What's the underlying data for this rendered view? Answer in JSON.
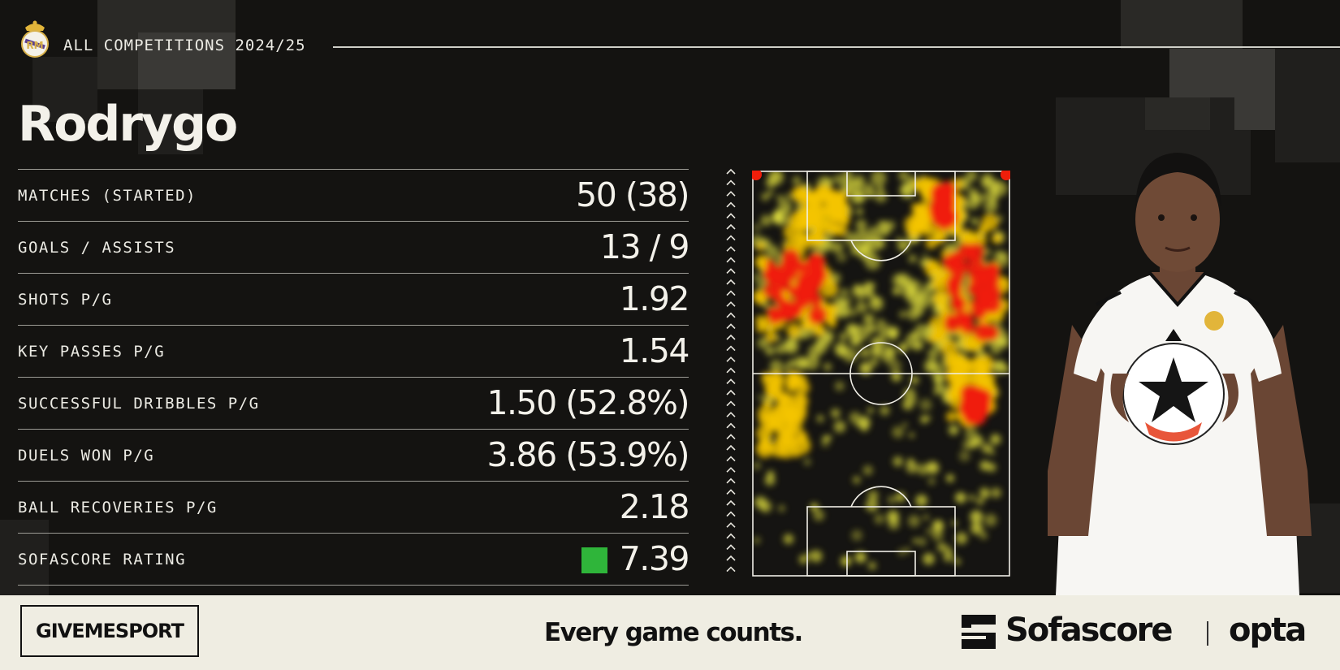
{
  "header": {
    "competition": "ALL COMPETITIONS 2024/25"
  },
  "player": {
    "name": "Rodrygo"
  },
  "stats": [
    {
      "label": "MATCHES (STARTED)",
      "value": "50 (38)"
    },
    {
      "label": "GOALS / ASSISTS",
      "value": "13 / 9"
    },
    {
      "label": "SHOTS P/G",
      "value": "1.92"
    },
    {
      "label": "KEY PASSES P/G",
      "value": "1.54"
    },
    {
      "label": "SUCCESSFUL DRIBBLES P/G",
      "value": "1.50 (52.8%)"
    },
    {
      "label": "DUELS WON P/G",
      "value": "3.86 (53.9%)"
    },
    {
      "label": "BALL RECOVERIES P/G",
      "value": "2.18"
    },
    {
      "label": "SOFASCORE RATING",
      "value": "7.39"
    }
  ],
  "rating_color": "#2fb53a",
  "heatmap": {
    "attack_direction": "up",
    "colors": {
      "low": "#e8e640",
      "mid": "#f4c400",
      "high": "#f01e0a"
    }
  },
  "footer": {
    "left_logo": "GIVEMESPORT",
    "tagline": "Every game counts.",
    "brand": "Sofascore",
    "partner": "opta"
  },
  "colors": {
    "background": "#141311",
    "footer": "#efede2",
    "text": "#f3f1ea"
  },
  "icons": [
    "real-madrid-crest-icon",
    "attack-direction-arrows-icon",
    "sofascore-logo-icon"
  ]
}
